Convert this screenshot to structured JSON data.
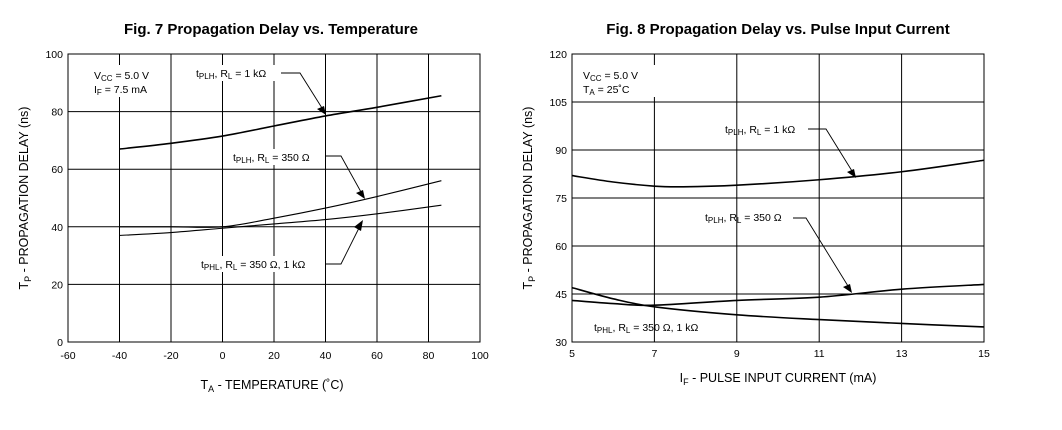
{
  "chart_data": [
    {
      "type": "line",
      "title": "Fig. 7  Propagation Delay vs. Temperature",
      "xlabel": "T_A - TEMPERATURE (°C)",
      "ylabel": "T_P - PROPAGATION DELAY (ns)",
      "xlim": [
        -60,
        100
      ],
      "ylim": [
        0,
        100
      ],
      "xticks": [
        -60,
        -40,
        -20,
        0,
        20,
        40,
        60,
        80,
        100
      ],
      "yticks": [
        0,
        20,
        40,
        60,
        80,
        100
      ],
      "grid": true,
      "conditions": [
        "VCC = 5.0 V",
        "IF = 7.5 mA"
      ],
      "series": [
        {
          "name": "tPLH, RL = 1 kΩ",
          "x": [
            -40,
            -20,
            0,
            20,
            40,
            60,
            85
          ],
          "y": [
            67,
            69,
            71.5,
            75,
            78.5,
            81.5,
            85.5
          ]
        },
        {
          "name": "tPLH, RL = 350 Ω",
          "x": [
            -40,
            -20,
            0,
            20,
            40,
            60,
            85
          ],
          "y": [
            40,
            40,
            40,
            43,
            46.5,
            50.5,
            56
          ]
        },
        {
          "name": "tPHL, RL = 350 Ω, 1 kΩ",
          "x": [
            -40,
            -20,
            0,
            20,
            40,
            60,
            85
          ],
          "y": [
            37,
            38,
            39.5,
            41,
            42.5,
            44.5,
            47.5
          ]
        }
      ]
    },
    {
      "type": "line",
      "title": "Fig. 8  Propagation Delay vs. Pulse Input Current",
      "xlabel": "I_F - PULSE INPUT CURRENT (mA)",
      "ylabel": "T_P - PROPAGATION DELAY (ns)",
      "xlim": [
        5,
        15
      ],
      "ylim": [
        30,
        120
      ],
      "xticks": [
        5,
        7,
        9,
        11,
        13,
        15
      ],
      "yticks": [
        30,
        45,
        60,
        75,
        90,
        105,
        120
      ],
      "grid": true,
      "conditions": [
        "VCC = 5.0 V",
        "TA = 25°C"
      ],
      "series": [
        {
          "name": "tPLH, RL = 1 kΩ",
          "x": [
            5,
            6,
            7,
            7.7,
            9,
            11,
            13,
            15
          ],
          "y": [
            82,
            80,
            78.7,
            78.5,
            79,
            80.7,
            83.2,
            86.8
          ]
        },
        {
          "name": "tPLH, RL = 350 Ω",
          "x": [
            5,
            6,
            7,
            9,
            11,
            13,
            15
          ],
          "y": [
            43,
            42,
            41.5,
            43,
            44,
            46.5,
            48
          ]
        },
        {
          "name": "tPHL, RL = 350 Ω, 1 kΩ",
          "x": [
            5,
            6,
            7,
            9,
            11,
            13,
            15
          ],
          "y": [
            47,
            43.5,
            41,
            38.5,
            37,
            35.8,
            34.7
          ]
        }
      ]
    }
  ],
  "fig7": {
    "title": "Fig. 7  Propagation Delay vs. Temperature",
    "ylabel_main": "T",
    "ylabel_sub": "P",
    "ylabel_rest": " - PROPAGATION DELAY (ns)",
    "xlabel_main": "T",
    "xlabel_sub": "A",
    "xlabel_rest": " - TEMPERATURE (˚C)",
    "cond1_a": "V",
    "cond1_sub": "CC",
    "cond1_b": " = 5.0 V",
    "cond2_a": "I",
    "cond2_sub": "F",
    "cond2_b": " = 7.5 mA",
    "ann1_t": "t",
    "ann1_sub1": "PLH",
    "ann1_mid": ", R",
    "ann1_sub2": "L",
    "ann1_end": " = 1 kΩ",
    "ann2_t": "t",
    "ann2_sub1": "PLH",
    "ann2_mid": ", R",
    "ann2_sub2": "L",
    "ann2_end": " = 350 Ω",
    "ann3_t": "t",
    "ann3_sub1": "PHL",
    "ann3_mid": ", R",
    "ann3_sub2": "L",
    "ann3_end": " = 350 Ω, 1 kΩ"
  },
  "fig8": {
    "title": "Fig. 8  Propagation Delay vs. Pulse Input Current",
    "ylabel_main": "T",
    "ylabel_sub": "P",
    "ylabel_rest": " - PROPAGATION DELAY (ns)",
    "xlabel_main": "I",
    "xlabel_sub": "F",
    "xlabel_rest": " - PULSE INPUT CURRENT (mA)",
    "cond1_a": "V",
    "cond1_sub": "CC",
    "cond1_b": " = 5.0 V",
    "cond2_a": "T",
    "cond2_sub": "A",
    "cond2_b": " = 25˚C",
    "ann1_t": "t",
    "ann1_sub1": "PLH",
    "ann1_mid": ", R",
    "ann1_sub2": "L",
    "ann1_end": " = 1 kΩ",
    "ann2_t": "t",
    "ann2_sub1": "PLH",
    "ann2_mid": ", R",
    "ann2_sub2": "L",
    "ann2_end": " = 350 Ω",
    "ann3_t": "t",
    "ann3_sub1": "PHL",
    "ann3_mid": ", R",
    "ann3_sub2": "L",
    "ann3_end": " = 350 Ω, 1 kΩ"
  }
}
